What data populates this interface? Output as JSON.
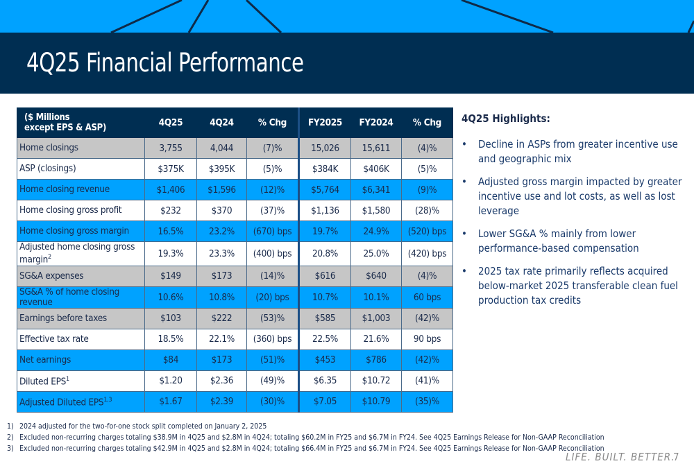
{
  "title": "4Q25 Financial Performance",
  "table": {
    "header": [
      "($ Millions\nexcept EPS & ASP)",
      "4Q25",
      "4Q24",
      "% Chg",
      "FY2025",
      "FY2024",
      "% Chg"
    ],
    "rows": [
      {
        "style": "gray",
        "label": "Home closings",
        "sup": "",
        "cells": [
          "3,755",
          "4,044",
          "(7)%",
          "15,026",
          "15,611",
          "(4)%"
        ]
      },
      {
        "style": "white",
        "label": "ASP (closings)",
        "sup": "",
        "cells": [
          "$375K",
          "$395K",
          "(5)%",
          "$384K",
          "$406K",
          "(5)%"
        ]
      },
      {
        "style": "blue",
        "label": "Home closing revenue",
        "sup": "",
        "cells": [
          "$1,406",
          "$1,596",
          "(12)%",
          "$5,764",
          "$6,341",
          "(9)%"
        ]
      },
      {
        "style": "white",
        "label": "Home closing gross profit",
        "sup": "",
        "cells": [
          "$232",
          "$370",
          "(37)%",
          "$1,136",
          "$1,580",
          "(28)%"
        ]
      },
      {
        "style": "blue",
        "label": "Home closing gross margin",
        "sup": "",
        "cells": [
          "16.5%",
          "23.2%",
          "(670) bps",
          "19.7%",
          "24.9%",
          "(520) bps"
        ]
      },
      {
        "style": "white",
        "label": "Adjusted home closing gross margin",
        "sup": "2",
        "cells": [
          "19.3%",
          "23.3%",
          "(400) bps",
          "20.8%",
          "25.0%",
          "(420) bps"
        ]
      },
      {
        "style": "gray",
        "label": "SG&A expenses",
        "sup": "",
        "cells": [
          "$149",
          "$173",
          "(14)%",
          "$616",
          "$640",
          "(4)%"
        ]
      },
      {
        "style": "blue",
        "label": "SG&A % of home closing revenue",
        "sup": "",
        "cells": [
          "10.6%",
          "10.8%",
          "(20) bps",
          "10.7%",
          "10.1%",
          "60 bps"
        ]
      },
      {
        "style": "gray",
        "label": "Earnings before taxes",
        "sup": "",
        "cells": [
          "$103",
          "$222",
          "(53)%",
          "$585",
          "$1,003",
          "(42)%"
        ]
      },
      {
        "style": "white",
        "label": "Effective tax rate",
        "sup": "",
        "cells": [
          "18.5%",
          "22.1%",
          "(360) bps",
          "22.5%",
          "21.6%",
          "90 bps"
        ]
      },
      {
        "style": "blue",
        "label": "Net earnings",
        "sup": "",
        "cells": [
          "$84",
          "$173",
          "(51)%",
          "$453",
          "$786",
          "(42)%"
        ]
      },
      {
        "style": "white",
        "label": "Diluted EPS",
        "sup": "1",
        "cells": [
          "$1.20",
          "$2.36",
          "(49)%",
          "$6.35",
          "$10.72",
          "(41)%"
        ]
      },
      {
        "style": "blue",
        "label": "Adjusted Diluted EPS",
        "sup": "1,3",
        "cells": [
          "$1.67",
          "$2.39",
          "(30)%",
          "$7.05",
          "$10.79",
          "(35)%"
        ]
      }
    ]
  },
  "highlights": {
    "title": "4Q25 Highlights:",
    "items": [
      "Decline in ASPs from greater incentive use and geographic mix",
      "Adjusted gross margin impacted by greater incentive use and lot costs, as well as lost leverage",
      "Lower SG&A % mainly from lower performance-based compensation",
      "2025 tax rate primarily reflects acquired below-market 2025 transferable clean fuel production tax credits"
    ]
  },
  "footnotes": [
    {
      "num": "1)",
      "text": "2024 adjusted for the two-for-one stock split completed on January 2, 2025"
    },
    {
      "num": "2)",
      "text": "Excluded non-recurring charges totaling $38.9M in 4Q25 and $2.8M in 4Q24; totaling $60.2M in FY25 and $6.7M in FY24. See 4Q25 Earnings Release for Non-GAAP Reconciliation"
    },
    {
      "num": "3)",
      "text": "Excluded non-recurring charges totaling $42.9M in 4Q25 and $2.8M in 4Q24; totaling $66.4M in FY25 and $6.7M in FY24. See 4Q25 Earnings Release for Non-GAAP Reconciliation"
    }
  ],
  "tagline": "LIFE. BUILT. BETTER.",
  "page_number": "7",
  "colors": {
    "navy": "#002e52",
    "blue": "#00a2ff",
    "gray": "#c6c6c6"
  }
}
